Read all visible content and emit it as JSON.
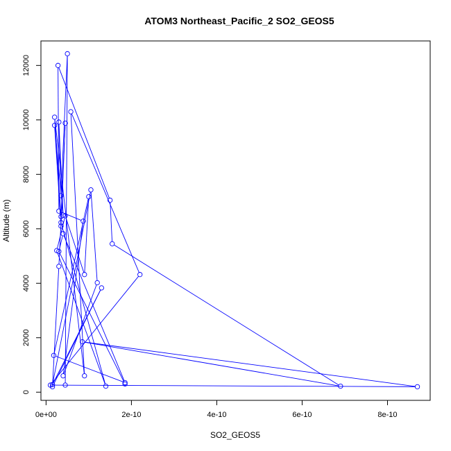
{
  "chart_data": {
    "type": "line",
    "title": "ATOM3 Northeast_Pacific_2 SO2_GEOS5",
    "xlabel": "SO2_GEOS5",
    "ylabel": "Altitude (m)",
    "xlim": [
      -1.2e-11,
      9e-10
    ],
    "ylim": [
      -300,
      12900
    ],
    "x_ticks": [
      0,
      2e-10,
      4e-10,
      6e-10,
      8e-10
    ],
    "x_tick_labels": [
      "0e+00",
      "2e-10",
      "4e-10",
      "6e-10",
      "8e-10"
    ],
    "y_ticks": [
      0,
      2000,
      4000,
      6000,
      8000,
      10000,
      12000
    ],
    "y_tick_labels": [
      "0",
      "2000",
      "4000",
      "6000",
      "8000",
      "10000",
      "12000"
    ],
    "grid": false,
    "series": [
      {
        "color": "#0000ff",
        "marker": "open-circle",
        "points": [
          {
            "x": 1.85e-10,
            "y": 300
          },
          {
            "x": 3e-11,
            "y": 5170
          },
          {
            "x": 4e-11,
            "y": 5820
          },
          {
            "x": 1.85e-10,
            "y": 350
          },
          {
            "x": 1.8e-11,
            "y": 1350
          },
          {
            "x": 1e-10,
            "y": 7180
          },
          {
            "x": 9e-11,
            "y": 4320
          },
          {
            "x": 4.5e-11,
            "y": 6480
          },
          {
            "x": 2.5e-11,
            "y": 5200
          },
          {
            "x": 1.4e-10,
            "y": 220
          },
          {
            "x": 3.5e-11,
            "y": 6230
          },
          {
            "x": 3e-11,
            "y": 4620
          },
          {
            "x": 1.5e-11,
            "y": 200
          },
          {
            "x": 1.3e-10,
            "y": 3830
          },
          {
            "x": 1.5e-11,
            "y": 280
          },
          {
            "x": 1.05e-10,
            "y": 7430
          },
          {
            "x": 1.2e-10,
            "y": 4020
          },
          {
            "x": 4e-11,
            "y": 600
          },
          {
            "x": 8.7e-11,
            "y": 6280
          },
          {
            "x": 3e-11,
            "y": 6650
          },
          {
            "x": 2.8e-11,
            "y": 12000
          },
          {
            "x": 1.5e-10,
            "y": 7050
          },
          {
            "x": 1.55e-10,
            "y": 5450
          },
          {
            "x": 6.9e-10,
            "y": 220
          },
          {
            "x": 8.5e-11,
            "y": 1850
          },
          {
            "x": 8.7e-10,
            "y": 200
          },
          {
            "x": 1e-11,
            "y": 260
          },
          {
            "x": 2.2e-10,
            "y": 4320
          },
          {
            "x": 5.8e-11,
            "y": 10300
          },
          {
            "x": 9e-11,
            "y": 600
          },
          {
            "x": 2e-11,
            "y": 10100
          },
          {
            "x": 3.5e-11,
            "y": 6450
          },
          {
            "x": 4.5e-11,
            "y": 9880
          },
          {
            "x": 3.5e-11,
            "y": 6100
          },
          {
            "x": 2e-11,
            "y": 9800
          },
          {
            "x": 4e-11,
            "y": 6500
          },
          {
            "x": 3e-11,
            "y": 9920
          },
          {
            "x": 3.5e-11,
            "y": 7220
          },
          {
            "x": 5e-11,
            "y": 12430
          },
          {
            "x": 4.5e-11,
            "y": 260
          }
        ]
      }
    ]
  }
}
